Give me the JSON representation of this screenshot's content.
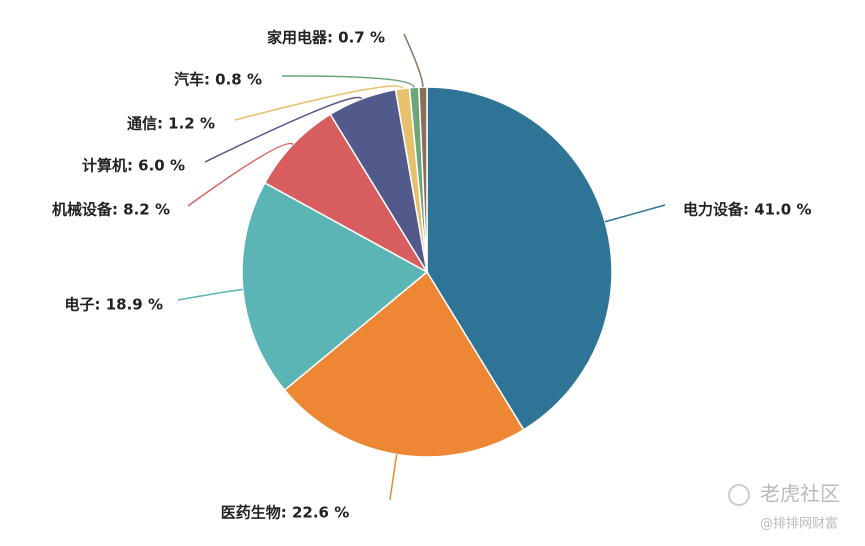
{
  "chart_data": {
    "type": "pie",
    "value_labels": [
      "电力设备: 41.0 %",
      "医药生物: 22.6 %",
      "电子: 18.9 %",
      "机械设备: 8.2 %",
      "计算机: 6.0 %",
      "通信: 1.2 %",
      "汽车: 0.8 %",
      "家用电器: 0.7 %"
    ],
    "values": [
      41.0,
      22.6,
      18.9,
      8.2,
      6.0,
      1.2,
      0.8,
      0.7
    ],
    "colors": [
      "#2e7496",
      "#ed8733",
      "#5ab5b4",
      "#d75d5e",
      "#525a8b",
      "#e6c16c",
      "#6aa67a",
      "#8c6e5a"
    ]
  },
  "watermark": {
    "brand": "老虎社区",
    "source": "@排排网财富"
  }
}
